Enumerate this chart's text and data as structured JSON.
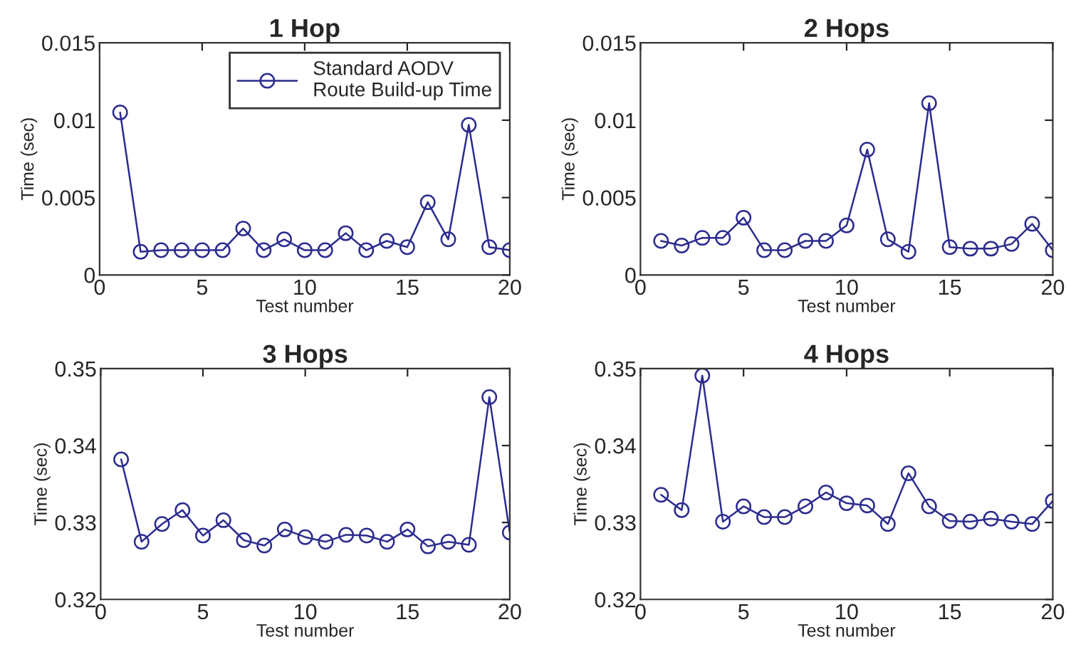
{
  "chart_data": [
    {
      "type": "line",
      "title": "1 Hop",
      "xlabel": "Test number",
      "ylabel": "Time (sec)",
      "x": [
        1,
        2,
        3,
        4,
        5,
        6,
        7,
        8,
        9,
        10,
        11,
        12,
        13,
        14,
        15,
        16,
        17,
        18,
        19,
        20
      ],
      "xlim": [
        0,
        20
      ],
      "xticks": [
        0,
        5,
        10,
        15,
        20
      ],
      "ylim": [
        0,
        0.015
      ],
      "yticks": [
        0,
        0.005,
        0.01,
        0.015
      ],
      "marker": "circle",
      "line_style": "solid",
      "grid": false,
      "legend": "top right",
      "series": [
        {
          "name": "Standard AODV\nRoute Build-up Time",
          "color": "#2b2b8f",
          "values": [
            0.0105,
            0.0015,
            0.0016,
            0.0016,
            0.0016,
            0.0016,
            0.003,
            0.0016,
            0.0023,
            0.0016,
            0.0016,
            0.0027,
            0.0016,
            0.0022,
            0.0018,
            0.0047,
            0.0023,
            0.0097,
            0.0018,
            0.0016
          ]
        }
      ]
    },
    {
      "type": "line",
      "title": "2 Hops",
      "xlabel": "Test number",
      "ylabel": "Time (sec)",
      "x": [
        1,
        2,
        3,
        4,
        5,
        6,
        7,
        8,
        9,
        10,
        11,
        12,
        13,
        14,
        15,
        16,
        17,
        18,
        19,
        20
      ],
      "xlim": [
        0,
        20
      ],
      "xticks": [
        0,
        5,
        10,
        15,
        20
      ],
      "ylim": [
        0,
        0.015
      ],
      "yticks": [
        0,
        0.005,
        0.01,
        0.015
      ],
      "marker": "circle",
      "line_style": "solid",
      "grid": false,
      "series": [
        {
          "color": "#2b2b8f",
          "values": [
            0.0022,
            0.0019,
            0.0024,
            0.0024,
            0.0037,
            0.0016,
            0.0016,
            0.0022,
            0.0022,
            0.0032,
            0.0081,
            0.0023,
            0.0015,
            0.0111,
            0.0018,
            0.0017,
            0.0017,
            0.002,
            0.0033,
            0.0016
          ]
        }
      ]
    },
    {
      "type": "line",
      "title": "3 Hops",
      "xlabel": "Test number",
      "ylabel": "Time (sec)",
      "x": [
        1,
        2,
        3,
        4,
        5,
        6,
        7,
        8,
        9,
        10,
        11,
        12,
        13,
        14,
        15,
        16,
        17,
        18,
        19,
        20
      ],
      "xlim": [
        0,
        20
      ],
      "xticks": [
        0,
        5,
        10,
        15,
        20
      ],
      "ylim": [
        0.32,
        0.35
      ],
      "yticks": [
        0.32,
        0.33,
        0.34,
        0.35
      ],
      "marker": "circle",
      "line_style": "solid",
      "grid": false,
      "series": [
        {
          "color": "#2b2b8f",
          "values": [
            0.3382,
            0.3275,
            0.3298,
            0.3316,
            0.3283,
            0.3303,
            0.3277,
            0.327,
            0.3291,
            0.3281,
            0.3275,
            0.3284,
            0.3283,
            0.3275,
            0.3291,
            0.3269,
            0.3275,
            0.3271,
            0.3463,
            0.3287
          ]
        }
      ]
    },
    {
      "type": "line",
      "title": "4 Hops",
      "xlabel": "Test number",
      "ylabel": "Time (sec)",
      "x": [
        1,
        2,
        3,
        4,
        5,
        6,
        7,
        8,
        9,
        10,
        11,
        12,
        13,
        14,
        15,
        16,
        17,
        18,
        19,
        20
      ],
      "xlim": [
        0,
        20
      ],
      "xticks": [
        0,
        5,
        10,
        15,
        20
      ],
      "ylim": [
        0.32,
        0.35
      ],
      "yticks": [
        0.32,
        0.33,
        0.34,
        0.35
      ],
      "marker": "circle",
      "line_style": "solid",
      "grid": false,
      "series": [
        {
          "color": "#2b2b8f",
          "values": [
            0.3336,
            0.3316,
            0.3491,
            0.3301,
            0.3321,
            0.3307,
            0.3307,
            0.3321,
            0.3339,
            0.3325,
            0.3322,
            0.3298,
            0.3364,
            0.3321,
            0.3302,
            0.3301,
            0.3305,
            0.3301,
            0.3298,
            0.3328
          ]
        }
      ]
    }
  ]
}
